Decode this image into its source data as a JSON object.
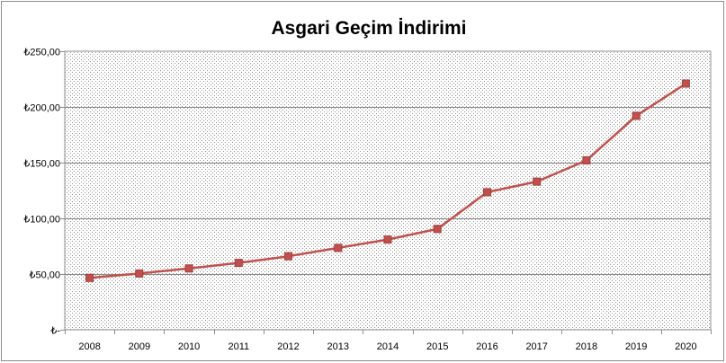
{
  "chart_data": {
    "type": "line",
    "title": "Asgari Geçim İndirimi",
    "xlabel": "",
    "ylabel": "",
    "categories": [
      "2008",
      "2009",
      "2010",
      "2011",
      "2012",
      "2013",
      "2014",
      "2015",
      "2016",
      "2017",
      "2018",
      "2019",
      "2020"
    ],
    "series": [
      {
        "values": [
          46.5,
          50.5,
          55.0,
          60.0,
          66.0,
          73.5,
          81.0,
          90.5,
          123.5,
          133.0,
          152.0,
          192.0,
          221.0
        ],
        "color": "#c0504d",
        "marker": "square"
      }
    ],
    "ylim": [
      0,
      250
    ],
    "yticks": [
      0,
      50,
      100,
      150,
      200,
      250
    ],
    "ytick_labels": [
      "₺-",
      "₺50,00",
      "₺100,00",
      "₺150,00",
      "₺200,00",
      "₺250,00"
    ],
    "grid": "horizontal",
    "plot_background": "dotted-gray",
    "legend": "none"
  }
}
